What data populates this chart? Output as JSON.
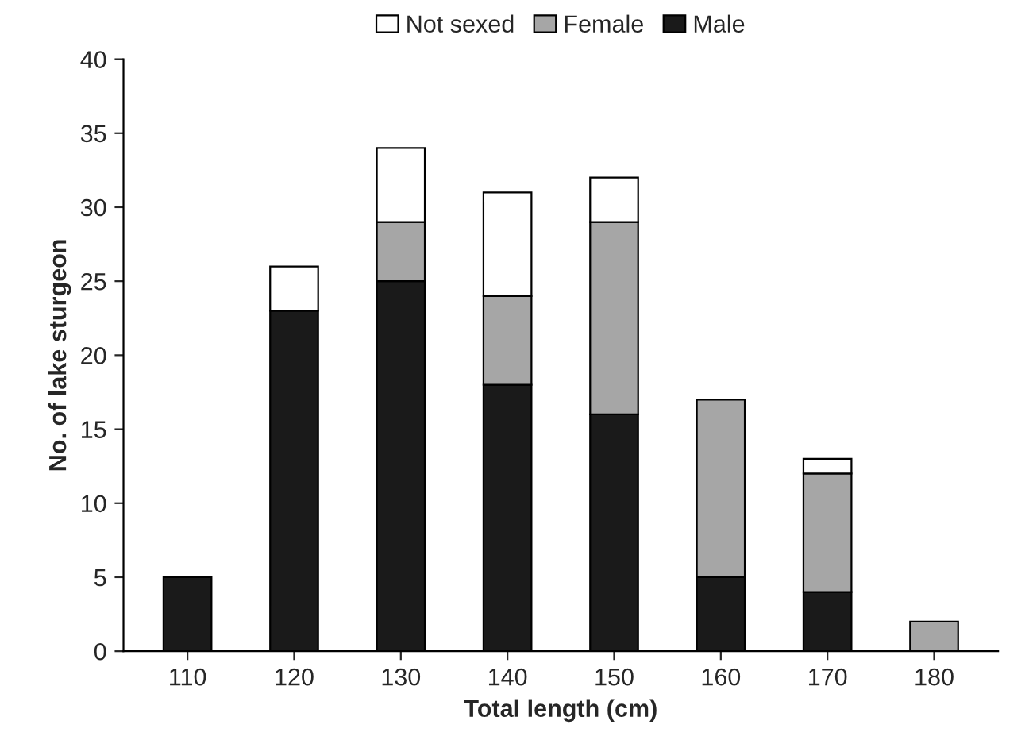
{
  "chart_data": {
    "type": "bar",
    "stacked": true,
    "xlabel": "Total length (cm)",
    "ylabel": "No. of lake sturgeon",
    "categories": [
      "110",
      "120",
      "130",
      "140",
      "150",
      "160",
      "170",
      "180"
    ],
    "series": [
      {
        "name": "Male",
        "color": "#1a1a1a",
        "values": [
          5,
          23,
          25,
          18,
          16,
          5,
          4,
          null
        ]
      },
      {
        "name": "Female",
        "color": "#a6a6a6",
        "values": [
          null,
          null,
          4,
          6,
          13,
          12,
          8,
          2
        ]
      },
      {
        "name": "Not sexed",
        "color": "#ffffff",
        "values": [
          null,
          3,
          5,
          7,
          3,
          null,
          1,
          null
        ]
      }
    ],
    "ylim": [
      0,
      40
    ],
    "yticks": [
      0,
      5,
      10,
      15,
      20,
      25,
      30,
      35,
      40
    ],
    "grid": false,
    "legend": "top"
  }
}
